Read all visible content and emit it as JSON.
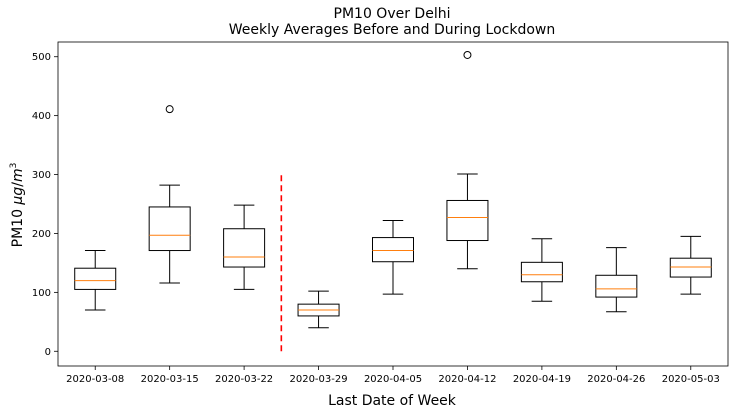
{
  "chart_data": {
    "type": "box",
    "title": "PM10 Over Delhi",
    "subtitle": "Weekly Averages Before and During Lockdown",
    "xlabel": "Last Date of Week",
    "ylabel_main": "PM10 ",
    "ylabel_unit_mu": "μ",
    "ylabel_unit_g": "g",
    "ylabel_unit_slash": "/",
    "ylabel_unit_m": "m",
    "ylabel_unit_exp": "3",
    "ylim": [
      -25,
      525
    ],
    "yticks": [
      0,
      100,
      200,
      300,
      400,
      500
    ],
    "ytick_labels": [
      "0",
      "100",
      "200",
      "300",
      "400",
      "500"
    ],
    "categories": [
      "2020-03-08",
      "2020-03-15",
      "2020-03-22",
      "2020-03-29",
      "2020-04-05",
      "2020-04-12",
      "2020-04-19",
      "2020-04-26",
      "2020-05-03"
    ],
    "boxes": [
      {
        "whisker_low": 70,
        "q1": 105,
        "median": 120,
        "q3": 141,
        "whisker_high": 171,
        "outliers": []
      },
      {
        "whisker_low": 116,
        "q1": 171,
        "median": 197,
        "q3": 245,
        "whisker_high": 282,
        "outliers": [
          411
        ]
      },
      {
        "whisker_low": 105,
        "q1": 143,
        "median": 160,
        "q3": 208,
        "whisker_high": 248,
        "outliers": []
      },
      {
        "whisker_low": 40,
        "q1": 60,
        "median": 70,
        "q3": 80,
        "whisker_high": 102,
        "outliers": []
      },
      {
        "whisker_low": 97,
        "q1": 152,
        "median": 171,
        "q3": 193,
        "whisker_high": 222,
        "outliers": []
      },
      {
        "whisker_low": 140,
        "q1": 188,
        "median": 227,
        "q3": 256,
        "whisker_high": 301,
        "outliers": [
          503
        ]
      },
      {
        "whisker_low": 85,
        "q1": 118,
        "median": 130,
        "q3": 151,
        "whisker_high": 191,
        "outliers": []
      },
      {
        "whisker_low": 67,
        "q1": 92,
        "median": 106,
        "q3": 129,
        "whisker_high": 176,
        "outliers": []
      },
      {
        "whisker_low": 97,
        "q1": 126,
        "median": 143,
        "q3": 158,
        "whisker_high": 195,
        "outliers": []
      }
    ],
    "lockdown_line": {
      "x_position_between": [
        2,
        3
      ],
      "y_from": 0,
      "y_to": 300,
      "color": "#ff0000",
      "style": "dashed"
    },
    "colors": {
      "box": "#000000",
      "median": "#ff7f0e",
      "outlier": "#000000",
      "axes": "#000000"
    },
    "grid": false,
    "legend": "none"
  }
}
